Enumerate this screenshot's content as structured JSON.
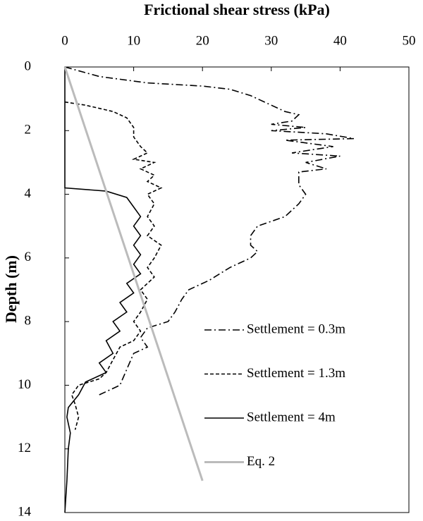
{
  "chart_data": {
    "type": "line",
    "xlabel": "Frictional shear stress (kPa)",
    "ylabel": "Depth (m)",
    "xlim": [
      0,
      50
    ],
    "xticks": [
      0,
      10,
      20,
      30,
      40,
      50
    ],
    "ylim": [
      0,
      14
    ],
    "yticks": [
      0,
      2,
      4,
      6,
      8,
      10,
      12,
      14
    ],
    "y_inverted": true,
    "x_axis_position": "top",
    "grid": false,
    "legend": "lower right",
    "series": [
      {
        "name": "Settlement = 0.3m",
        "color": "#000000",
        "linestyle": "dashdot",
        "x": [
          0,
          5,
          12,
          20,
          24,
          27,
          30,
          32,
          34,
          33,
          30,
          35,
          30,
          38,
          42,
          32,
          39,
          33,
          40,
          35,
          38,
          34,
          34,
          35,
          34,
          32,
          28,
          27,
          27,
          28,
          27,
          24,
          21,
          18,
          17,
          16,
          15,
          12,
          11,
          12,
          10,
          9,
          8,
          5
        ],
        "values": [
          0,
          0.3,
          0.5,
          0.6,
          0.7,
          0.9,
          1.2,
          1.4,
          1.5,
          1.7,
          1.8,
          1.9,
          2.0,
          2.1,
          2.25,
          2.3,
          2.5,
          2.7,
          2.8,
          3.0,
          3.2,
          3.3,
          3.7,
          4.0,
          4.3,
          4.7,
          5.0,
          5.3,
          5.6,
          5.8,
          6.0,
          6.3,
          6.7,
          7.0,
          7.3,
          7.7,
          8.0,
          8.2,
          8.5,
          8.8,
          9.0,
          9.5,
          10,
          10.3
        ]
      },
      {
        "name": "Settlement = 1.3m",
        "color": "#000000",
        "linestyle": "dashed",
        "x": [
          0,
          3,
          7,
          9,
          10,
          10,
          11,
          12,
          10,
          13,
          11,
          13,
          12,
          14,
          12,
          13,
          12,
          13,
          12,
          14,
          13,
          12,
          13,
          11,
          12,
          11,
          10,
          11,
          10,
          8,
          7,
          6,
          5,
          2,
          1,
          1.5,
          2,
          1.5
        ],
        "values": [
          1.1,
          1.2,
          1.4,
          1.6,
          1.9,
          2.2,
          2.5,
          2.7,
          2.9,
          3.0,
          3.2,
          3.4,
          3.6,
          3.8,
          4.0,
          4.3,
          4.7,
          5.0,
          5.3,
          5.6,
          6.0,
          6.3,
          6.6,
          7.0,
          7.3,
          7.7,
          8.0,
          8.3,
          8.6,
          8.8,
          9.2,
          9.6,
          9.8,
          10.0,
          10.3,
          10.6,
          11.0,
          11.4
        ]
      },
      {
        "name": "Settlement = 4m",
        "color": "#000000",
        "linestyle": "solid",
        "x": [
          0,
          0,
          6,
          9,
          10,
          11,
          10,
          11,
          10,
          11,
          10,
          11,
          9,
          10,
          8,
          9,
          7,
          8,
          6,
          7,
          5,
          6,
          3,
          2,
          0.5,
          0.3,
          0.8,
          0.5,
          0.3,
          0
        ],
        "values": [
          0,
          3.8,
          3.9,
          4.1,
          4.4,
          4.7,
          5.0,
          5.3,
          5.6,
          5.9,
          6.2,
          6.5,
          6.8,
          7.1,
          7.4,
          7.7,
          8.0,
          8.3,
          8.6,
          9.0,
          9.3,
          9.6,
          9.9,
          10.3,
          10.7,
          11.0,
          11.5,
          12.0,
          13.0,
          14.0
        ]
      },
      {
        "name": "Eq. 2",
        "color": "#bbbbbb",
        "linestyle": "solid",
        "x": [
          0,
          20
        ],
        "values": [
          0,
          13
        ]
      }
    ]
  }
}
